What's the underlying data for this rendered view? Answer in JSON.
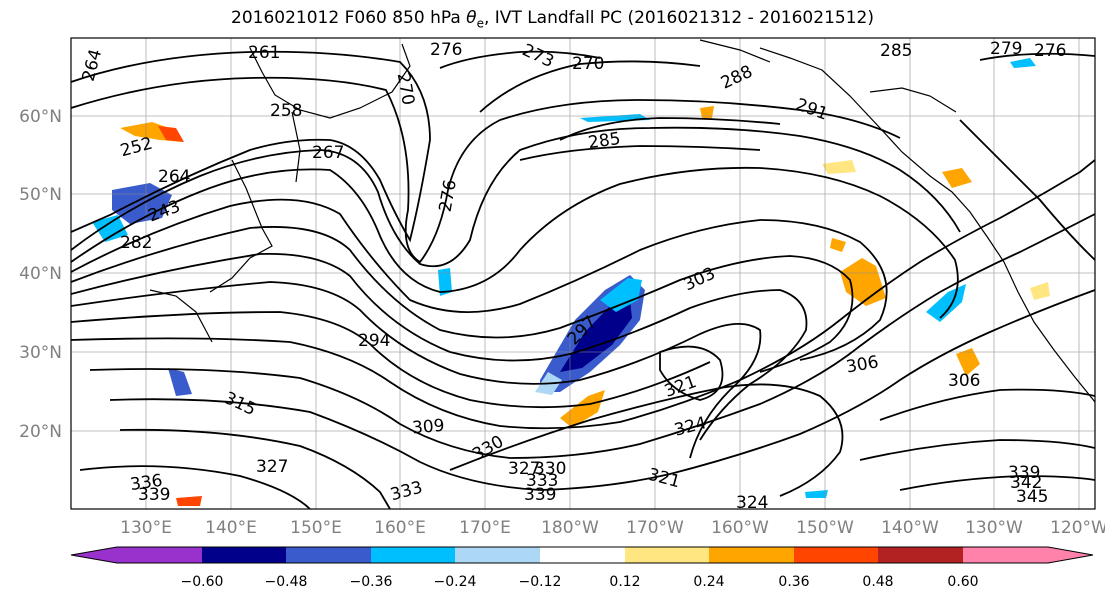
{
  "title_main": "2016021012 F060 850 hPa ",
  "title_theta": "θ",
  "title_sub": "e",
  "title_rest": ", IVT Landfall PC (2016021312 - 2016021512)",
  "lat_labels": [
    "60°N",
    "50°N",
    "40°N",
    "30°N",
    "20°N"
  ],
  "lon_labels": [
    "130°E",
    "140°E",
    "150°E",
    "160°E",
    "170°E",
    "180°W",
    "170°W",
    "160°W",
    "150°W",
    "140°W",
    "130°W",
    "120°W"
  ],
  "colorbar": {
    "colors": [
      "#9932cc",
      "#00008b",
      "#3a5bcc",
      "#00bfff",
      "#add8f5",
      "#ffffff",
      "#ffe680",
      "#ffa500",
      "#ff4500",
      "#b22222",
      "#ff82ab"
    ],
    "ticks": [
      "−0.60",
      "−0.48",
      "−0.36",
      "−0.24",
      "−0.12",
      "0.12",
      "0.24",
      "0.36",
      "0.48",
      "0.60"
    ]
  },
  "contour_labels": [
    "261",
    "276",
    "270",
    "273",
    "270",
    "264",
    "258",
    "252",
    "264",
    "243",
    "267",
    "276",
    "285",
    "288",
    "291",
    "285",
    "279",
    "276",
    "282",
    "294",
    "297",
    "303",
    "309",
    "315",
    "327",
    "330",
    "336",
    "333",
    "339",
    "321",
    "324",
    "327",
    "330",
    "333",
    "339",
    "321",
    "306",
    "306",
    "339",
    "342",
    "345",
    "324"
  ]
}
